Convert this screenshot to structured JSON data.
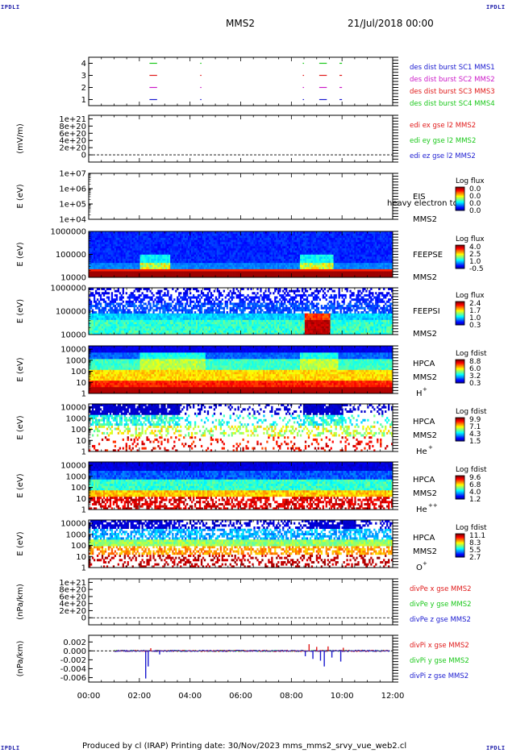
{
  "header": {
    "corner_tag": "IPDLI",
    "title": "MMS2",
    "date": "21/Jul/2018 00:00"
  },
  "footer": {
    "text": "Produced by cl (IRAP)   Printing date: 30/Nov/2023   mms_mms2_srvy_vue_web2.cl"
  },
  "chart_data": {
    "type": "stacked-timeseries-and-spectrograms",
    "x_axis": {
      "ticks": [
        "00:00",
        "02:00",
        "04:00",
        "06:00",
        "08:00",
        "10:00",
        "12:00"
      ],
      "range_hours": [
        0,
        12
      ]
    },
    "panels": [
      {
        "id": "burst",
        "kind": "line",
        "ylim": [
          0.5,
          4.5
        ],
        "yticks": [
          {
            "v": 4,
            "t": "4"
          },
          {
            "v": 3,
            "t": "3"
          },
          {
            "v": 2,
            "t": "2"
          },
          {
            "v": 1,
            "t": "1"
          }
        ],
        "legend": [
          {
            "text": "des dist burst SC1 MMS1",
            "color": "#1a1ad0"
          },
          {
            "text": "des dist burst SC2 MMS2",
            "color": "#cc1ac8"
          },
          {
            "text": "des dist burst SC3 MMS3",
            "color": "#e01a1a"
          },
          {
            "text": "des dist burst SC4 MMS4",
            "color": "#1ac81a"
          }
        ],
        "segments": [
          {
            "level": 4,
            "color": "#1ac81a",
            "start": 2.4,
            "end": 2.7
          },
          {
            "level": 3,
            "color": "#e01a1a",
            "start": 2.4,
            "end": 2.7
          },
          {
            "level": 2,
            "color": "#cc1ac8",
            "start": 2.4,
            "end": 2.7
          },
          {
            "level": 1,
            "color": "#1a1ad0",
            "start": 2.4,
            "end": 2.7
          },
          {
            "level": 4,
            "color": "#1ac81a",
            "start": 4.4,
            "end": 4.45
          },
          {
            "level": 3,
            "color": "#e01a1a",
            "start": 4.4,
            "end": 4.45
          },
          {
            "level": 2,
            "color": "#cc1ac8",
            "start": 4.4,
            "end": 4.45
          },
          {
            "level": 1,
            "color": "#1a1ad0",
            "start": 4.4,
            "end": 4.45
          },
          {
            "level": 4,
            "color": "#1ac81a",
            "start": 8.45,
            "end": 8.5
          },
          {
            "level": 3,
            "color": "#e01a1a",
            "start": 8.45,
            "end": 8.5
          },
          {
            "level": 2,
            "color": "#cc1ac8",
            "start": 8.45,
            "end": 8.5
          },
          {
            "level": 1,
            "color": "#1a1ad0",
            "start": 8.45,
            "end": 8.5
          },
          {
            "level": 4,
            "color": "#1ac81a",
            "start": 9.1,
            "end": 9.4
          },
          {
            "level": 3,
            "color": "#e01a1a",
            "start": 9.1,
            "end": 9.4
          },
          {
            "level": 2,
            "color": "#cc1ac8",
            "start": 9.1,
            "end": 9.4
          },
          {
            "level": 1,
            "color": "#1a1ad0",
            "start": 9.1,
            "end": 9.4
          },
          {
            "level": 4,
            "color": "#1ac81a",
            "start": 9.9,
            "end": 10.0
          },
          {
            "level": 3,
            "color": "#e01a1a",
            "start": 9.9,
            "end": 10.0
          },
          {
            "level": 2,
            "color": "#cc1ac8",
            "start": 9.9,
            "end": 10.0
          },
          {
            "level": 1,
            "color": "#1a1ad0",
            "start": 9.9,
            "end": 10.0
          }
        ]
      },
      {
        "id": "edi",
        "kind": "line",
        "ylabel": "(mV/m)",
        "ylim": [
          -2e+20,
          1.1e+21
        ],
        "yticks": [
          {
            "v": 1e+21,
            "t": "1e+21"
          },
          {
            "v": 8e+20,
            "t": "8e+20"
          },
          {
            "v": 6e+20,
            "t": "6e+20"
          },
          {
            "v": 4e+20,
            "t": "4e+20"
          },
          {
            "v": 2e+20,
            "t": "2e+20"
          },
          {
            "v": 0,
            "t": "0"
          }
        ],
        "zero_line": true,
        "legend": [
          {
            "text": "edi ex gse l2 MMS2",
            "color": "#e01a1a"
          },
          {
            "text": "edi ey gse l2 MMS2",
            "color": "#1ac81a"
          },
          {
            "text": "edi ez gse l2 MMS2",
            "color": "#1a1ad0"
          }
        ]
      },
      {
        "id": "eis",
        "kind": "spectrogram",
        "ylabel": "E (eV)",
        "log_range": [
          4,
          7
        ],
        "yticks": [
          {
            "v": 7,
            "t": "1e+07"
          },
          {
            "v": 6,
            "t": "1e+06"
          },
          {
            "v": 5,
            "t": "1e+05"
          },
          {
            "v": 4,
            "t": "1e+04"
          }
        ],
        "instrument": "EIS",
        "spacecraft": "MMS2",
        "overlay_text": "heavy electron to",
        "colorbar": {
          "title": "Log flux",
          "labels": [
            "0.0",
            "0.0",
            "0.0",
            "0.0"
          ]
        },
        "pattern": "empty"
      },
      {
        "id": "feepse",
        "kind": "spectrogram",
        "ylabel": "E (eV)",
        "log_range": [
          4,
          6
        ],
        "yticks": [
          {
            "v": 6,
            "t": "1000000"
          },
          {
            "v": 5,
            "t": "100000"
          },
          {
            "v": 4,
            "t": "10000"
          }
        ],
        "instrument": "FEEPSE",
        "spacecraft": "MMS2",
        "colorbar": {
          "title": "Log flux",
          "labels": [
            "4.0",
            "2.5",
            "1.0",
            "-0.5"
          ]
        },
        "pattern": "feepse"
      },
      {
        "id": "feepsi",
        "kind": "spectrogram",
        "ylabel": "E (eV)",
        "log_range": [
          4,
          6
        ],
        "yticks": [
          {
            "v": 6,
            "t": "1000000"
          },
          {
            "v": 5,
            "t": "100000"
          },
          {
            "v": 4,
            "t": "10000"
          }
        ],
        "instrument": "FEEPSI",
        "spacecraft": "MMS2",
        "colorbar": {
          "title": "Log flux",
          "labels": [
            "2.4",
            "1.7",
            "1.0",
            "0.3"
          ]
        },
        "pattern": "feepsi"
      },
      {
        "id": "hpca_h",
        "kind": "spectrogram",
        "ylabel": "E (eV)",
        "log_range": [
          0,
          4.3
        ],
        "yticks": [
          {
            "v": 4,
            "t": "10000"
          },
          {
            "v": 3,
            "t": "1000"
          },
          {
            "v": 2,
            "t": "100"
          },
          {
            "v": 1,
            "t": "10"
          },
          {
            "v": 0,
            "t": "1"
          }
        ],
        "instrument": "HPCA",
        "spacecraft": "MMS2",
        "species": "H",
        "charge": "+",
        "colorbar": {
          "title": "Log fdist",
          "labels": [
            "8.8",
            "6.0",
            "3.2",
            "0.3"
          ]
        },
        "pattern": "hplus"
      },
      {
        "id": "hpca_he",
        "kind": "spectrogram",
        "ylabel": "E (eV)",
        "log_range": [
          0,
          4.3
        ],
        "yticks": [
          {
            "v": 4,
            "t": "10000"
          },
          {
            "v": 3,
            "t": "1000"
          },
          {
            "v": 2,
            "t": "100"
          },
          {
            "v": 1,
            "t": "10"
          },
          {
            "v": 0,
            "t": "1"
          }
        ],
        "instrument": "HPCA",
        "spacecraft": "MMS2",
        "species": "He",
        "charge": "+",
        "colorbar": {
          "title": "Log fdist",
          "labels": [
            "9.9",
            "7.1",
            "4.3",
            "1.5"
          ]
        },
        "pattern": "heplus"
      },
      {
        "id": "hpca_hepp",
        "kind": "spectrogram",
        "ylabel": "E (eV)",
        "log_range": [
          0,
          4.3
        ],
        "yticks": [
          {
            "v": 4,
            "t": "10000"
          },
          {
            "v": 3,
            "t": "1000"
          },
          {
            "v": 2,
            "t": "100"
          },
          {
            "v": 1,
            "t": "10"
          },
          {
            "v": 0,
            "t": "1"
          }
        ],
        "instrument": "HPCA",
        "spacecraft": "MMS2",
        "species": "He",
        "charge": "++",
        "colorbar": {
          "title": "Log fdist",
          "labels": [
            "9.6",
            "6.8",
            "4.0",
            "1.2"
          ]
        },
        "pattern": "heplusplus"
      },
      {
        "id": "hpca_o",
        "kind": "spectrogram",
        "ylabel": "E (eV)",
        "log_range": [
          0,
          4.3
        ],
        "yticks": [
          {
            "v": 4,
            "t": "10000"
          },
          {
            "v": 3,
            "t": "1000"
          },
          {
            "v": 2,
            "t": "100"
          },
          {
            "v": 1,
            "t": "10"
          },
          {
            "v": 0,
            "t": "1"
          }
        ],
        "instrument": "HPCA",
        "spacecraft": "MMS2",
        "species": "O",
        "charge": "+",
        "colorbar": {
          "title": "Log fdist",
          "labels": [
            "11.1",
            "8.3",
            "5.5",
            "2.7"
          ]
        },
        "pattern": "oplus"
      },
      {
        "id": "divpe",
        "kind": "line",
        "ylabel": "(nPa/km)",
        "ylim": [
          -2e+20,
          1.1e+21
        ],
        "yticks": [
          {
            "v": 1e+21,
            "t": "1e+21"
          },
          {
            "v": 8e+20,
            "t": "8e+20"
          },
          {
            "v": 6e+20,
            "t": "6e+20"
          },
          {
            "v": 4e+20,
            "t": "4e+20"
          },
          {
            "v": 2e+20,
            "t": "2e+20"
          },
          {
            "v": 0,
            "t": "0"
          }
        ],
        "zero_line": true,
        "legend": [
          {
            "text": "divPe x gse MMS2",
            "color": "#e01a1a"
          },
          {
            "text": "divPe y gse MMS2",
            "color": "#1ac81a"
          },
          {
            "text": "divPe z gse MMS2",
            "color": "#1a1ad0"
          }
        ]
      },
      {
        "id": "divpi",
        "kind": "line",
        "ylabel": "(nPa/km)",
        "ylim": [
          -0.007,
          0.0035
        ],
        "yticks": [
          {
            "v": 0.002,
            "t": "0.002"
          },
          {
            "v": 0,
            "t": "0.000"
          },
          {
            "v": -0.002,
            "t": "-0.002"
          },
          {
            "v": -0.004,
            "t": "-0.004"
          },
          {
            "v": -0.006,
            "t": "-0.006"
          }
        ],
        "zero_line": true,
        "legend": [
          {
            "text": "divPi x gse MMS2",
            "color": "#e01a1a"
          },
          {
            "text": "divPi y gse MMS2",
            "color": "#1ac81a"
          },
          {
            "text": "divPi z gse MMS2",
            "color": "#1a1ad0"
          }
        ],
        "active_hours": [
          1.0,
          11.9
        ],
        "spikes": [
          {
            "t": 2.25,
            "v": -0.0062,
            "color": "#1a1ad0"
          },
          {
            "t": 2.35,
            "v": -0.0035,
            "color": "#1a1ad0"
          },
          {
            "t": 2.45,
            "v": 0.0006,
            "color": "#e01a1a"
          },
          {
            "t": 2.8,
            "v": -0.0008,
            "color": "#1a1ad0"
          },
          {
            "t": 8.55,
            "v": -0.0012,
            "color": "#1a1ad0"
          },
          {
            "t": 8.7,
            "v": 0.0015,
            "color": "#e01a1a"
          },
          {
            "t": 8.85,
            "v": -0.0018,
            "color": "#1a1ad0"
          },
          {
            "t": 9.0,
            "v": 0.0009,
            "color": "#e01a1a"
          },
          {
            "t": 9.15,
            "v": -0.0022,
            "color": "#1a1ad0"
          },
          {
            "t": 9.3,
            "v": -0.0035,
            "color": "#1a1ad0"
          },
          {
            "t": 9.45,
            "v": 0.001,
            "color": "#e01a1a"
          },
          {
            "t": 9.6,
            "v": -0.0015,
            "color": "#1a1ad0"
          },
          {
            "t": 9.95,
            "v": -0.0024,
            "color": "#1a1ad0"
          },
          {
            "t": 10.05,
            "v": 0.0007,
            "color": "#e01a1a"
          }
        ]
      }
    ]
  }
}
